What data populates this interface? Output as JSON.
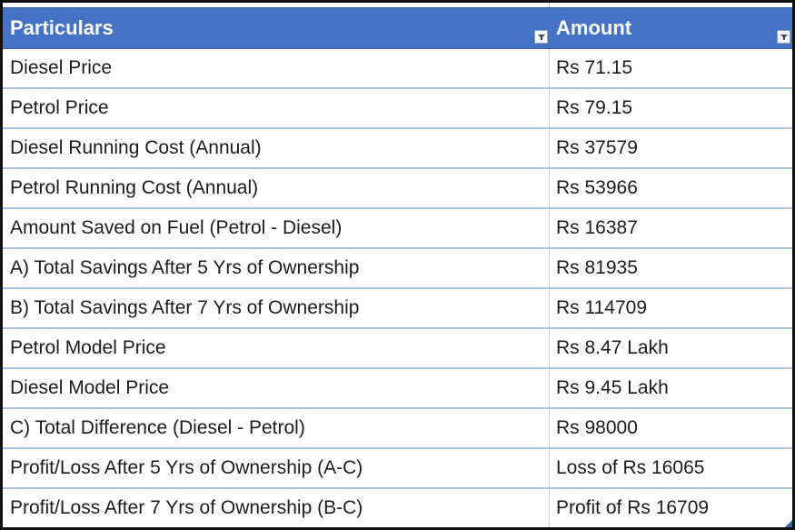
{
  "table": {
    "columns": [
      {
        "label": "Particulars"
      },
      {
        "label": "Amount"
      }
    ],
    "rows": [
      {
        "particulars": "Diesel Price",
        "amount": "Rs 71.15"
      },
      {
        "particulars": "Petrol Price",
        "amount": "Rs 79.15"
      },
      {
        "particulars": "Diesel Running Cost (Annual)",
        "amount": "Rs 37579"
      },
      {
        "particulars": "Petrol Running Cost (Annual)",
        "amount": "Rs 53966"
      },
      {
        "particulars": "Amount Saved on Fuel (Petrol - Diesel)",
        "amount": "Rs 16387"
      },
      {
        "particulars": "A) Total Savings After 5 Yrs of Ownership",
        "amount": "Rs 81935"
      },
      {
        "particulars": "B) Total Savings After 7 Yrs of Ownership",
        "amount": "Rs 114709"
      },
      {
        "particulars": "Petrol Model Price",
        "amount": "Rs 8.47 Lakh"
      },
      {
        "particulars": "Diesel Model Price",
        "amount": "Rs 9.45 Lakh"
      },
      {
        "particulars": "C) Total Difference (Diesel - Petrol)",
        "amount": "Rs 98000"
      },
      {
        "particulars": "Profit/Loss After 5 Yrs of Ownership (A-C)",
        "amount": "Loss of Rs 16065"
      },
      {
        "particulars": "Profit/Loss After 7 Yrs of Ownership (B-C)",
        "amount": "Profit of Rs 16709"
      }
    ]
  },
  "icons": {
    "filter": "filter-dropdown-icon"
  },
  "colors": {
    "header_bg": "#4472c4",
    "header_text": "#ffffff",
    "row_divider": "#aec3dc",
    "column_divider": "#cfd4db",
    "outer_border": "#101010",
    "cell_text": "#1c1c1c",
    "resize_handle": "#3465a8"
  }
}
